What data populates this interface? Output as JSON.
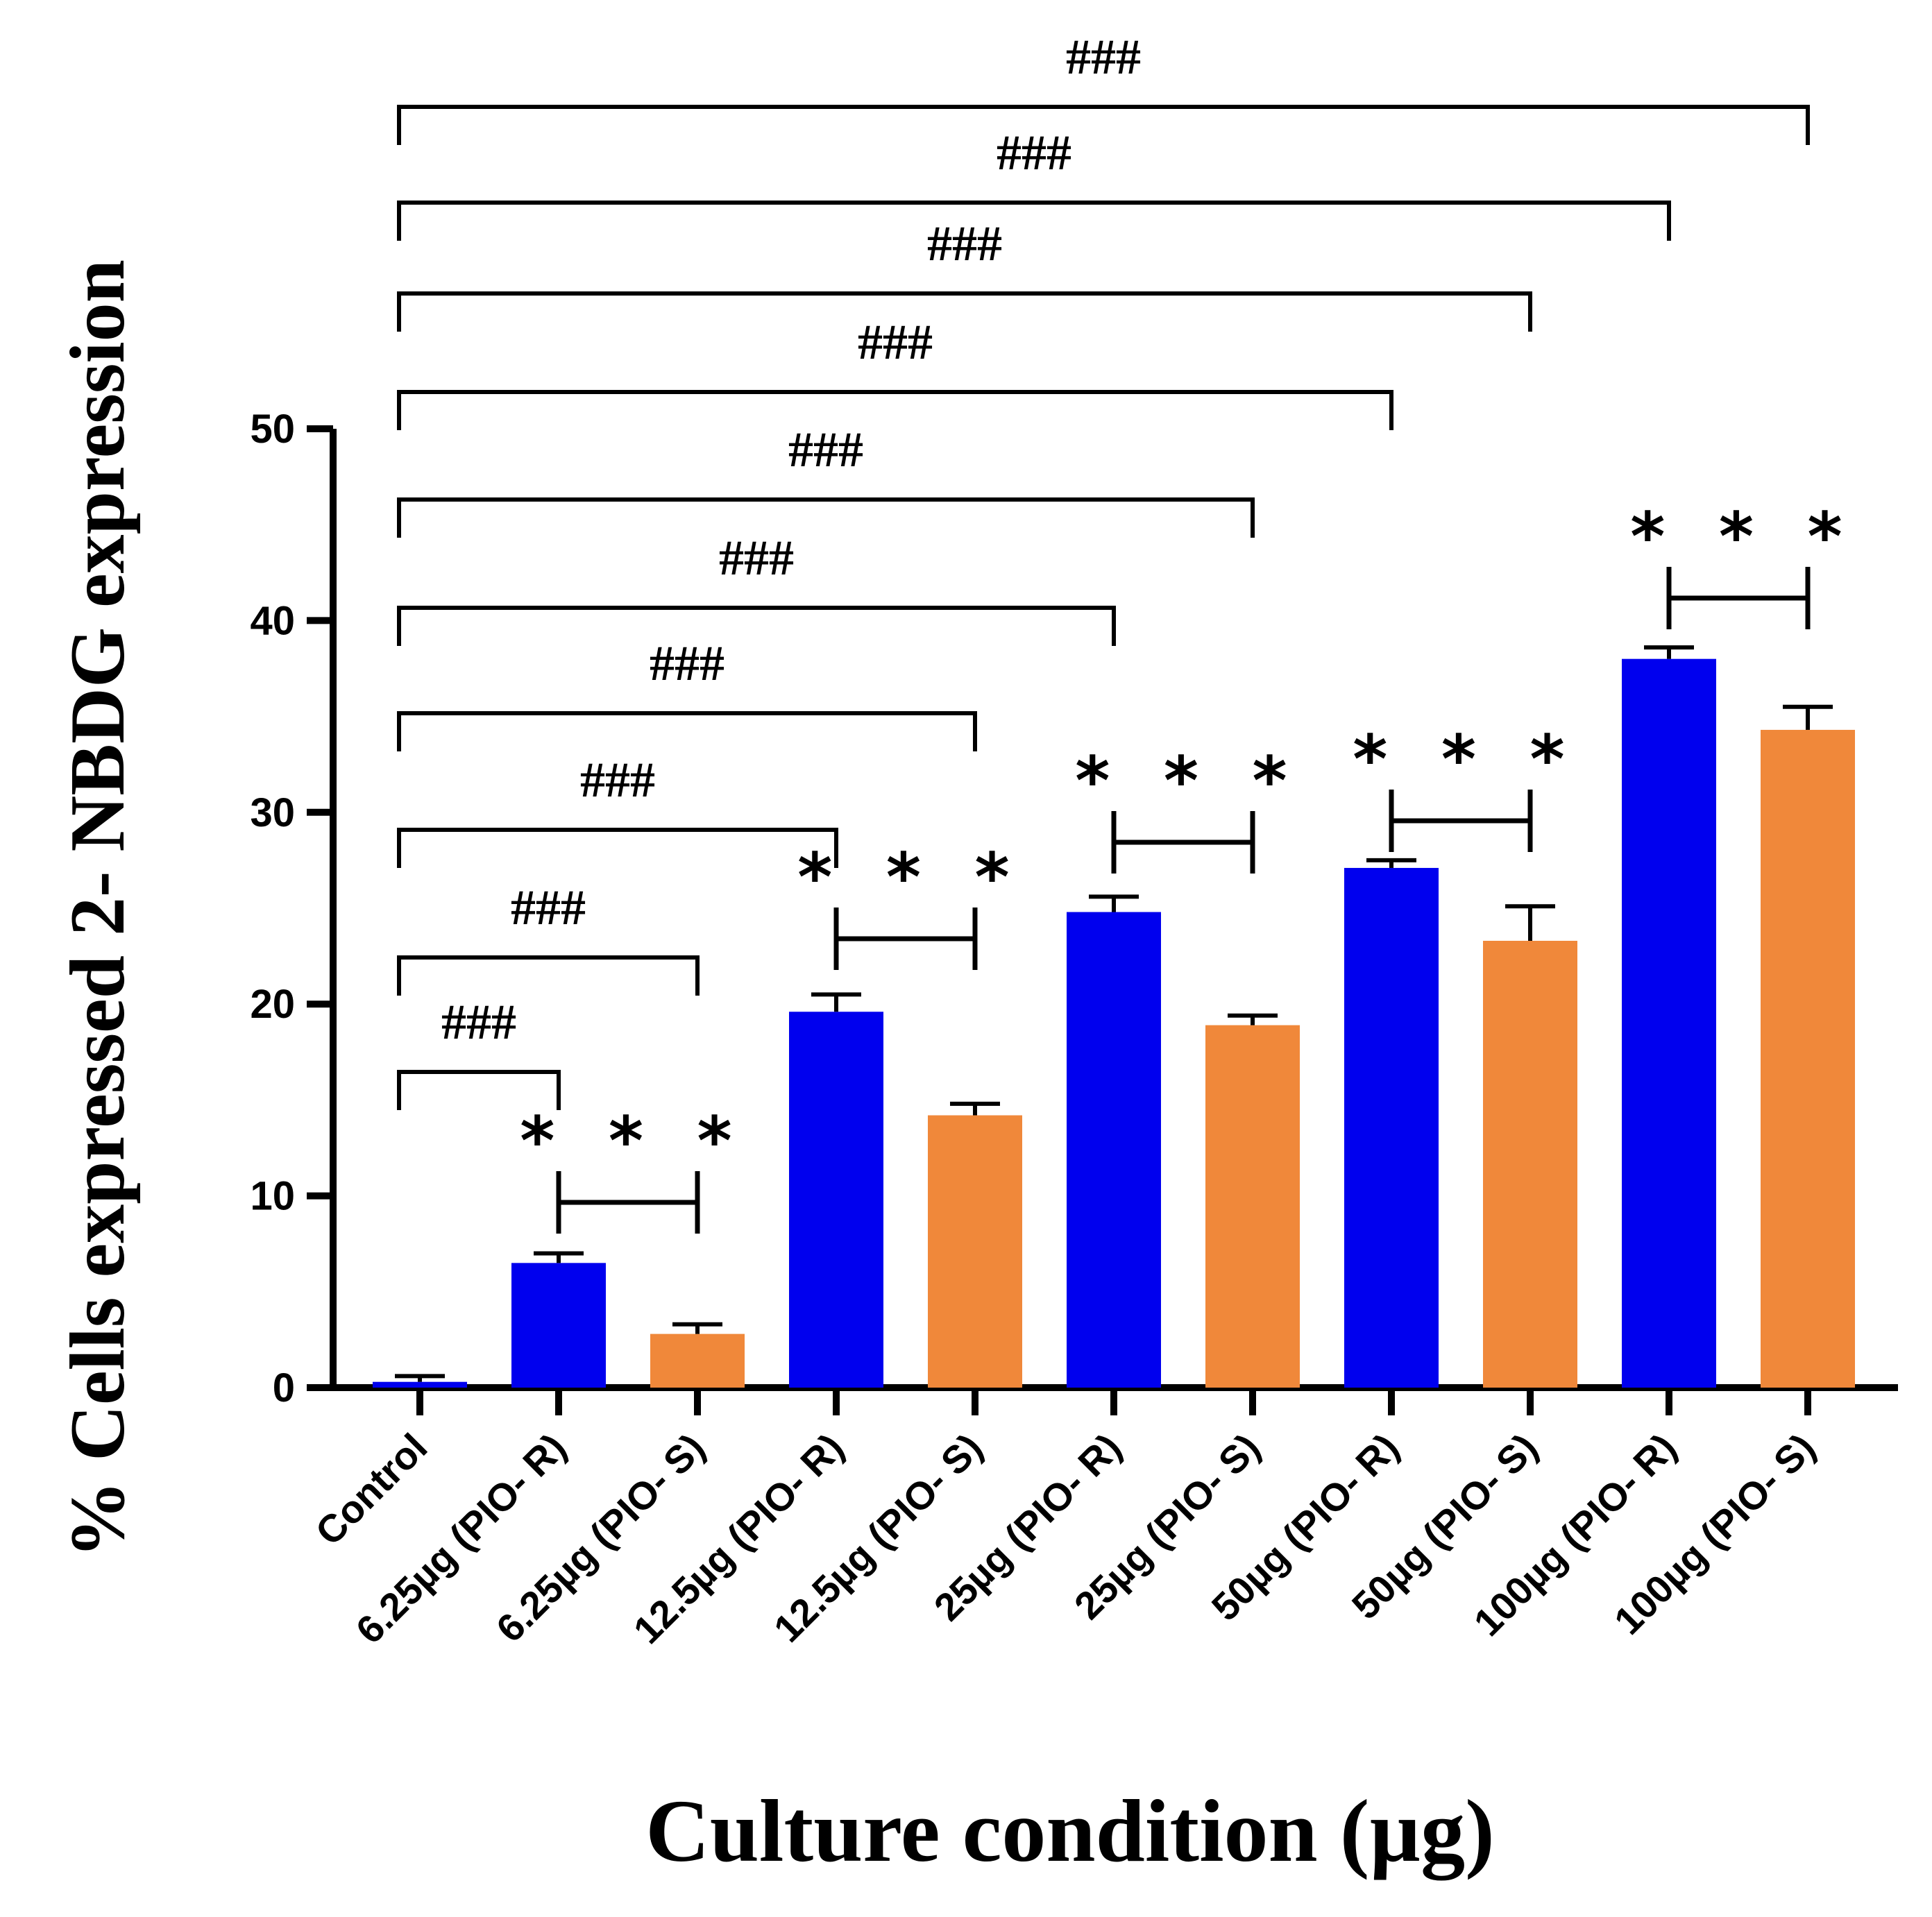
{
  "chart_data": {
    "type": "bar",
    "xlabel": "Culture condition (µg)",
    "ylabel": "% Cells expressed 2- NBDG expression",
    "ylim": [
      0,
      50
    ],
    "yticks": [
      0,
      10,
      20,
      30,
      40,
      50
    ],
    "categories": [
      "Control",
      "6.25µg (PIO- R)",
      "6.25µg (PIO- S)",
      "12.5µg (PIO- R)",
      "12.5µg (PIO- S)",
      "25µg (PIO- R)",
      "25µg (PIO- S)",
      "50µg (PIO- R)",
      "50µg (PIO- S)",
      "100µg (PIO- R)",
      "100µg (PIO- S)"
    ],
    "values": [
      0.3,
      6.5,
      2.8,
      19.6,
      14.2,
      24.8,
      18.9,
      27.1,
      23.3,
      38.0,
      34.3
    ],
    "errors": [
      0.3,
      0.5,
      0.5,
      0.9,
      0.6,
      0.8,
      0.5,
      0.4,
      1.8,
      0.6,
      1.2
    ],
    "bar_colors": [
      "#0000ee",
      "#0000ee",
      "#f0883a",
      "#0000ee",
      "#f0883a",
      "#0000ee",
      "#f0883a",
      "#0000ee",
      "#f0883a",
      "#0000ee",
      "#f0883a"
    ],
    "comparisons": [
      {
        "from": 0,
        "to": 1,
        "label": "###"
      },
      {
        "from": 0,
        "to": 2,
        "label": "###"
      },
      {
        "from": 0,
        "to": 3,
        "label": "###"
      },
      {
        "from": 0,
        "to": 4,
        "label": "###"
      },
      {
        "from": 0,
        "to": 5,
        "label": "###"
      },
      {
        "from": 0,
        "to": 6,
        "label": "###"
      },
      {
        "from": 0,
        "to": 7,
        "label": "###"
      },
      {
        "from": 0,
        "to": 8,
        "label": "###"
      },
      {
        "from": 0,
        "to": 9,
        "label": "###"
      },
      {
        "from": 0,
        "to": 10,
        "label": "###"
      },
      {
        "from": 1,
        "to": 2,
        "label": "* * *"
      },
      {
        "from": 3,
        "to": 4,
        "label": "* * *"
      },
      {
        "from": 5,
        "to": 6,
        "label": "* * *"
      },
      {
        "from": 7,
        "to": 8,
        "label": "* * *"
      },
      {
        "from": 9,
        "to": 10,
        "label": "* * *"
      }
    ]
  }
}
